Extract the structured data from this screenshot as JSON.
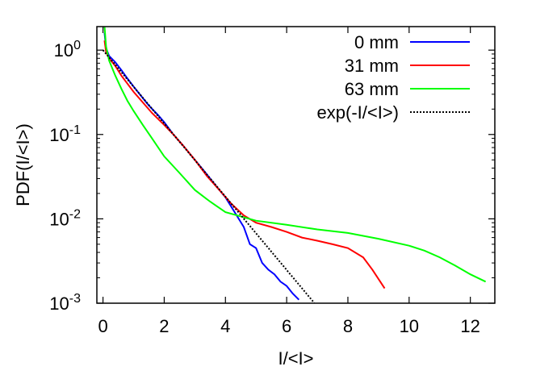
{
  "chart_data": {
    "type": "line",
    "title": "",
    "xlabel": "I/<I>",
    "ylabel": "PDF(I/<I>)",
    "xlim": [
      -0.2,
      12.8
    ],
    "ylim": [
      0.001,
      1.9
    ],
    "yscale": "log",
    "grid": false,
    "legend_position": "top-right",
    "x_ticks": [
      0,
      2,
      4,
      6,
      8,
      10,
      12
    ],
    "x_tick_labels": [
      "0",
      "2",
      "4",
      "6",
      "8",
      "10",
      "12"
    ],
    "y_ticks": [
      0.001,
      0.01,
      0.1,
      1
    ],
    "y_tick_labels": [
      {
        "base": "10",
        "exp": "-3"
      },
      {
        "base": "10",
        "exp": "-2"
      },
      {
        "base": "10",
        "exp": "-1"
      },
      {
        "base": "10",
        "exp": "0"
      }
    ],
    "series": [
      {
        "name": "0 mm",
        "color": "#0000ff",
        "x": [
          0.05,
          0.1,
          0.2,
          0.4,
          0.6,
          0.8,
          1.0,
          1.2,
          1.5,
          1.8,
          2.0,
          2.3,
          2.6,
          3.0,
          3.3,
          3.6,
          4.0,
          4.3,
          4.6,
          4.8,
          5.0,
          5.2,
          5.4,
          5.6,
          5.8,
          6.0,
          6.2,
          6.4
        ],
        "y": [
          1.6,
          1.05,
          0.85,
          0.72,
          0.58,
          0.46,
          0.37,
          0.3,
          0.22,
          0.17,
          0.14,
          0.1,
          0.075,
          0.05,
          0.037,
          0.027,
          0.018,
          0.012,
          0.008,
          0.005,
          0.0045,
          0.003,
          0.0025,
          0.0022,
          0.0018,
          0.0016,
          0.0013,
          0.0011
        ]
      },
      {
        "name": "31 mm",
        "color": "#ff0000",
        "x": [
          0.05,
          0.1,
          0.2,
          0.4,
          0.6,
          0.8,
          1.0,
          1.3,
          1.6,
          2.0,
          2.3,
          2.6,
          3.0,
          3.4,
          3.8,
          4.2,
          4.6,
          5.0,
          5.5,
          6.0,
          6.5,
          7.0,
          7.5,
          8.0,
          8.5,
          8.8,
          9.2
        ],
        "y": [
          1.3,
          0.95,
          0.8,
          0.65,
          0.5,
          0.4,
          0.32,
          0.24,
          0.18,
          0.13,
          0.1,
          0.075,
          0.05,
          0.032,
          0.022,
          0.015,
          0.011,
          0.009,
          0.008,
          0.007,
          0.006,
          0.0055,
          0.005,
          0.0045,
          0.0035,
          0.0025,
          0.0015
        ]
      },
      {
        "name": "63 mm",
        "color": "#00ff00",
        "x": [
          0.05,
          0.1,
          0.2,
          0.4,
          0.6,
          0.8,
          1.0,
          1.3,
          1.6,
          2.0,
          2.5,
          3.0,
          3.5,
          4.0,
          5.0,
          6.0,
          7.0,
          8.0,
          9.0,
          10.0,
          10.5,
          11.0,
          11.5,
          12.0,
          12.5
        ],
        "y": [
          1.9,
          1.1,
          0.75,
          0.5,
          0.35,
          0.25,
          0.19,
          0.13,
          0.09,
          0.055,
          0.035,
          0.022,
          0.016,
          0.012,
          0.0095,
          0.0085,
          0.0075,
          0.0068,
          0.0058,
          0.0048,
          0.0042,
          0.0035,
          0.0028,
          0.0022,
          0.0018
        ]
      },
      {
        "name": "exp(-I/<I>)",
        "color": "#000000",
        "style": "dotted",
        "function": "exp(-x)",
        "x_range": [
          0,
          6.9
        ]
      }
    ]
  }
}
